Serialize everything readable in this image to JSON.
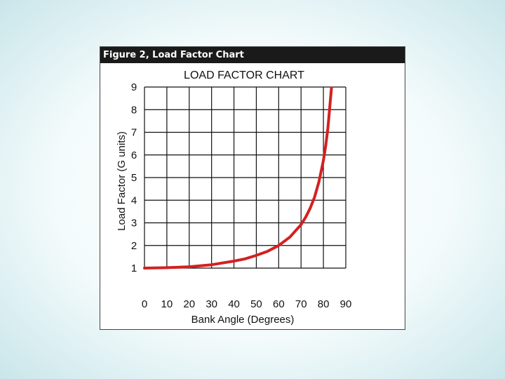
{
  "figure": {
    "header": "Figure 2, Load Factor Chart"
  },
  "colors": {
    "curve": "#d42020",
    "grid": "#111111",
    "header_bg": "#1a1a1a"
  },
  "chart_data": {
    "type": "line",
    "title": "LOAD FACTOR CHART",
    "xlabel": "Bank Angle (Degrees)",
    "ylabel": "Load Factor (G units)",
    "xlim": [
      0,
      90
    ],
    "ylim": [
      1,
      9
    ],
    "xticks": [
      "0",
      "10",
      "20",
      "30",
      "40",
      "50",
      "60",
      "70",
      "80",
      "90"
    ],
    "yticks": [
      "1",
      "2",
      "3",
      "4",
      "5",
      "6",
      "7",
      "8",
      "9"
    ],
    "grid": true,
    "series": [
      {
        "x": [
          0,
          10,
          20,
          30,
          40,
          45,
          50,
          55,
          60,
          65,
          70,
          72,
          74,
          76,
          78,
          80,
          81,
          82,
          83.6
        ],
        "y": [
          1.0,
          1.02,
          1.06,
          1.15,
          1.31,
          1.41,
          1.56,
          1.74,
          2.0,
          2.37,
          2.92,
          3.24,
          3.63,
          4.13,
          4.81,
          5.76,
          6.39,
          7.19,
          8.96
        ]
      }
    ]
  }
}
